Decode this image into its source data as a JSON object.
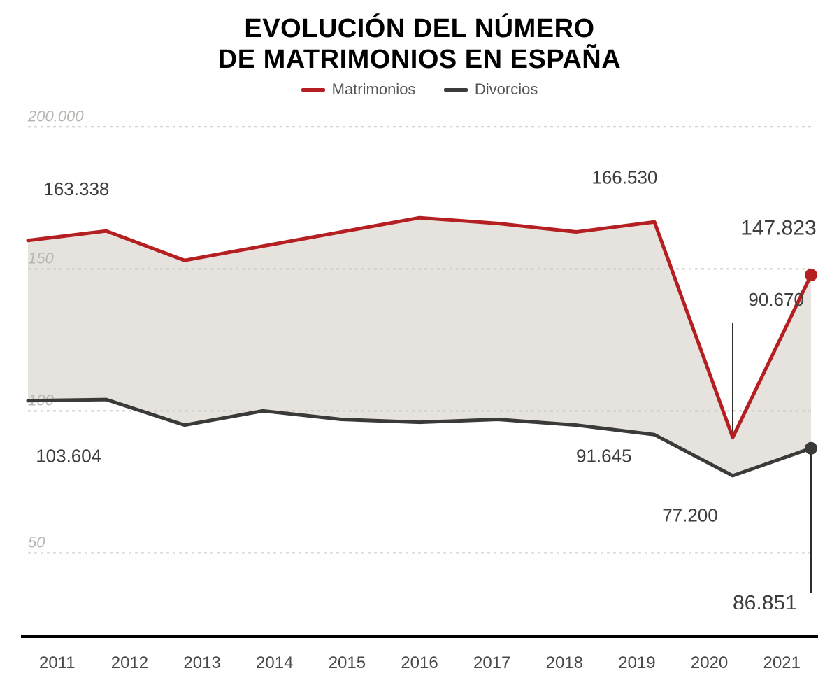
{
  "title_line1": "EVOLUCIÓN DEL NÚMERO",
  "title_line2": "DE MATRIMONIOS EN ESPAÑA",
  "title_fontsize": 38,
  "legend": {
    "items": [
      {
        "label": "Matrimonios",
        "color": "#b51f21"
      },
      {
        "label": "Divorcios",
        "color": "#3a3a39"
      }
    ]
  },
  "chart": {
    "type": "line-area",
    "background_color": "#ffffff",
    "fill_between_color": "#e6e3de",
    "grid_color": "#c9c6c1",
    "ylim": [
      40,
      205
    ],
    "yticks": [
      {
        "value": 200,
        "label": "200.000"
      },
      {
        "value": 150,
        "label": "150"
      },
      {
        "value": 100,
        "label": "100"
      },
      {
        "value": 50,
        "label": "50"
      }
    ],
    "xlim": [
      2011,
      2021
    ],
    "xticks": [
      "2011",
      "2012",
      "2013",
      "2014",
      "2015",
      "2016",
      "2017",
      "2018",
      "2019",
      "2020",
      "2021"
    ],
    "series": [
      {
        "name": "Matrimonios",
        "color": "#b51f21",
        "line_width": 5,
        "end_marker_radius": 9,
        "values": [
          {
            "x": 2011,
            "y": 160.0
          },
          {
            "x": 2012,
            "y": 163.338
          },
          {
            "x": 2013,
            "y": 153.0
          },
          {
            "x": 2014,
            "y": 158.0
          },
          {
            "x": 2015,
            "y": 163.0
          },
          {
            "x": 2016,
            "y": 168.0
          },
          {
            "x": 2017,
            "y": 166.0
          },
          {
            "x": 2018,
            "y": 163.0
          },
          {
            "x": 2019,
            "y": 166.53
          },
          {
            "x": 2020,
            "y": 90.67
          },
          {
            "x": 2021,
            "y": 147.823
          }
        ]
      },
      {
        "name": "Divorcios",
        "color": "#3a3a39",
        "line_width": 5,
        "end_marker_radius": 9,
        "values": [
          {
            "x": 2011,
            "y": 103.604
          },
          {
            "x": 2012,
            "y": 104.0
          },
          {
            "x": 2013,
            "y": 95.0
          },
          {
            "x": 2014,
            "y": 100.0
          },
          {
            "x": 2015,
            "y": 97.0
          },
          {
            "x": 2016,
            "y": 96.0
          },
          {
            "x": 2017,
            "y": 97.0
          },
          {
            "x": 2018,
            "y": 95.0
          },
          {
            "x": 2019,
            "y": 91.645
          },
          {
            "x": 2020,
            "y": 77.2
          },
          {
            "x": 2021,
            "y": 86.851
          }
        ]
      }
    ],
    "value_labels": [
      {
        "text": "163.338",
        "at_x": 2011.2,
        "at_y": 176,
        "anchor": "start"
      },
      {
        "text": "166.530",
        "at_x": 2018.2,
        "at_y": 180,
        "anchor": "start"
      },
      {
        "text": "147.823",
        "at_x": 2020.1,
        "at_y": 162,
        "anchor": "start",
        "fontsize": 30
      },
      {
        "text": "90.670",
        "at_x": 2020.2,
        "at_y": 137,
        "anchor": "start"
      },
      {
        "text": "103.604",
        "at_x": 2011.1,
        "at_y": 82,
        "anchor": "start"
      },
      {
        "text": "91.645",
        "at_x": 2018.0,
        "at_y": 82,
        "anchor": "start"
      },
      {
        "text": "77.200",
        "at_x": 2019.1,
        "at_y": 61,
        "anchor": "start"
      },
      {
        "text": "86.851",
        "at_x": 2020.0,
        "at_y": 30,
        "anchor": "start",
        "fontsize": 30
      }
    ],
    "leader_lines": [
      {
        "from": {
          "x": 2020,
          "y": 90.67
        },
        "to": {
          "x": 2020,
          "y": 131
        }
      },
      {
        "from": {
          "x": 2021,
          "y": 86.851
        },
        "to": {
          "x": 2021,
          "y": 36
        }
      }
    ]
  }
}
